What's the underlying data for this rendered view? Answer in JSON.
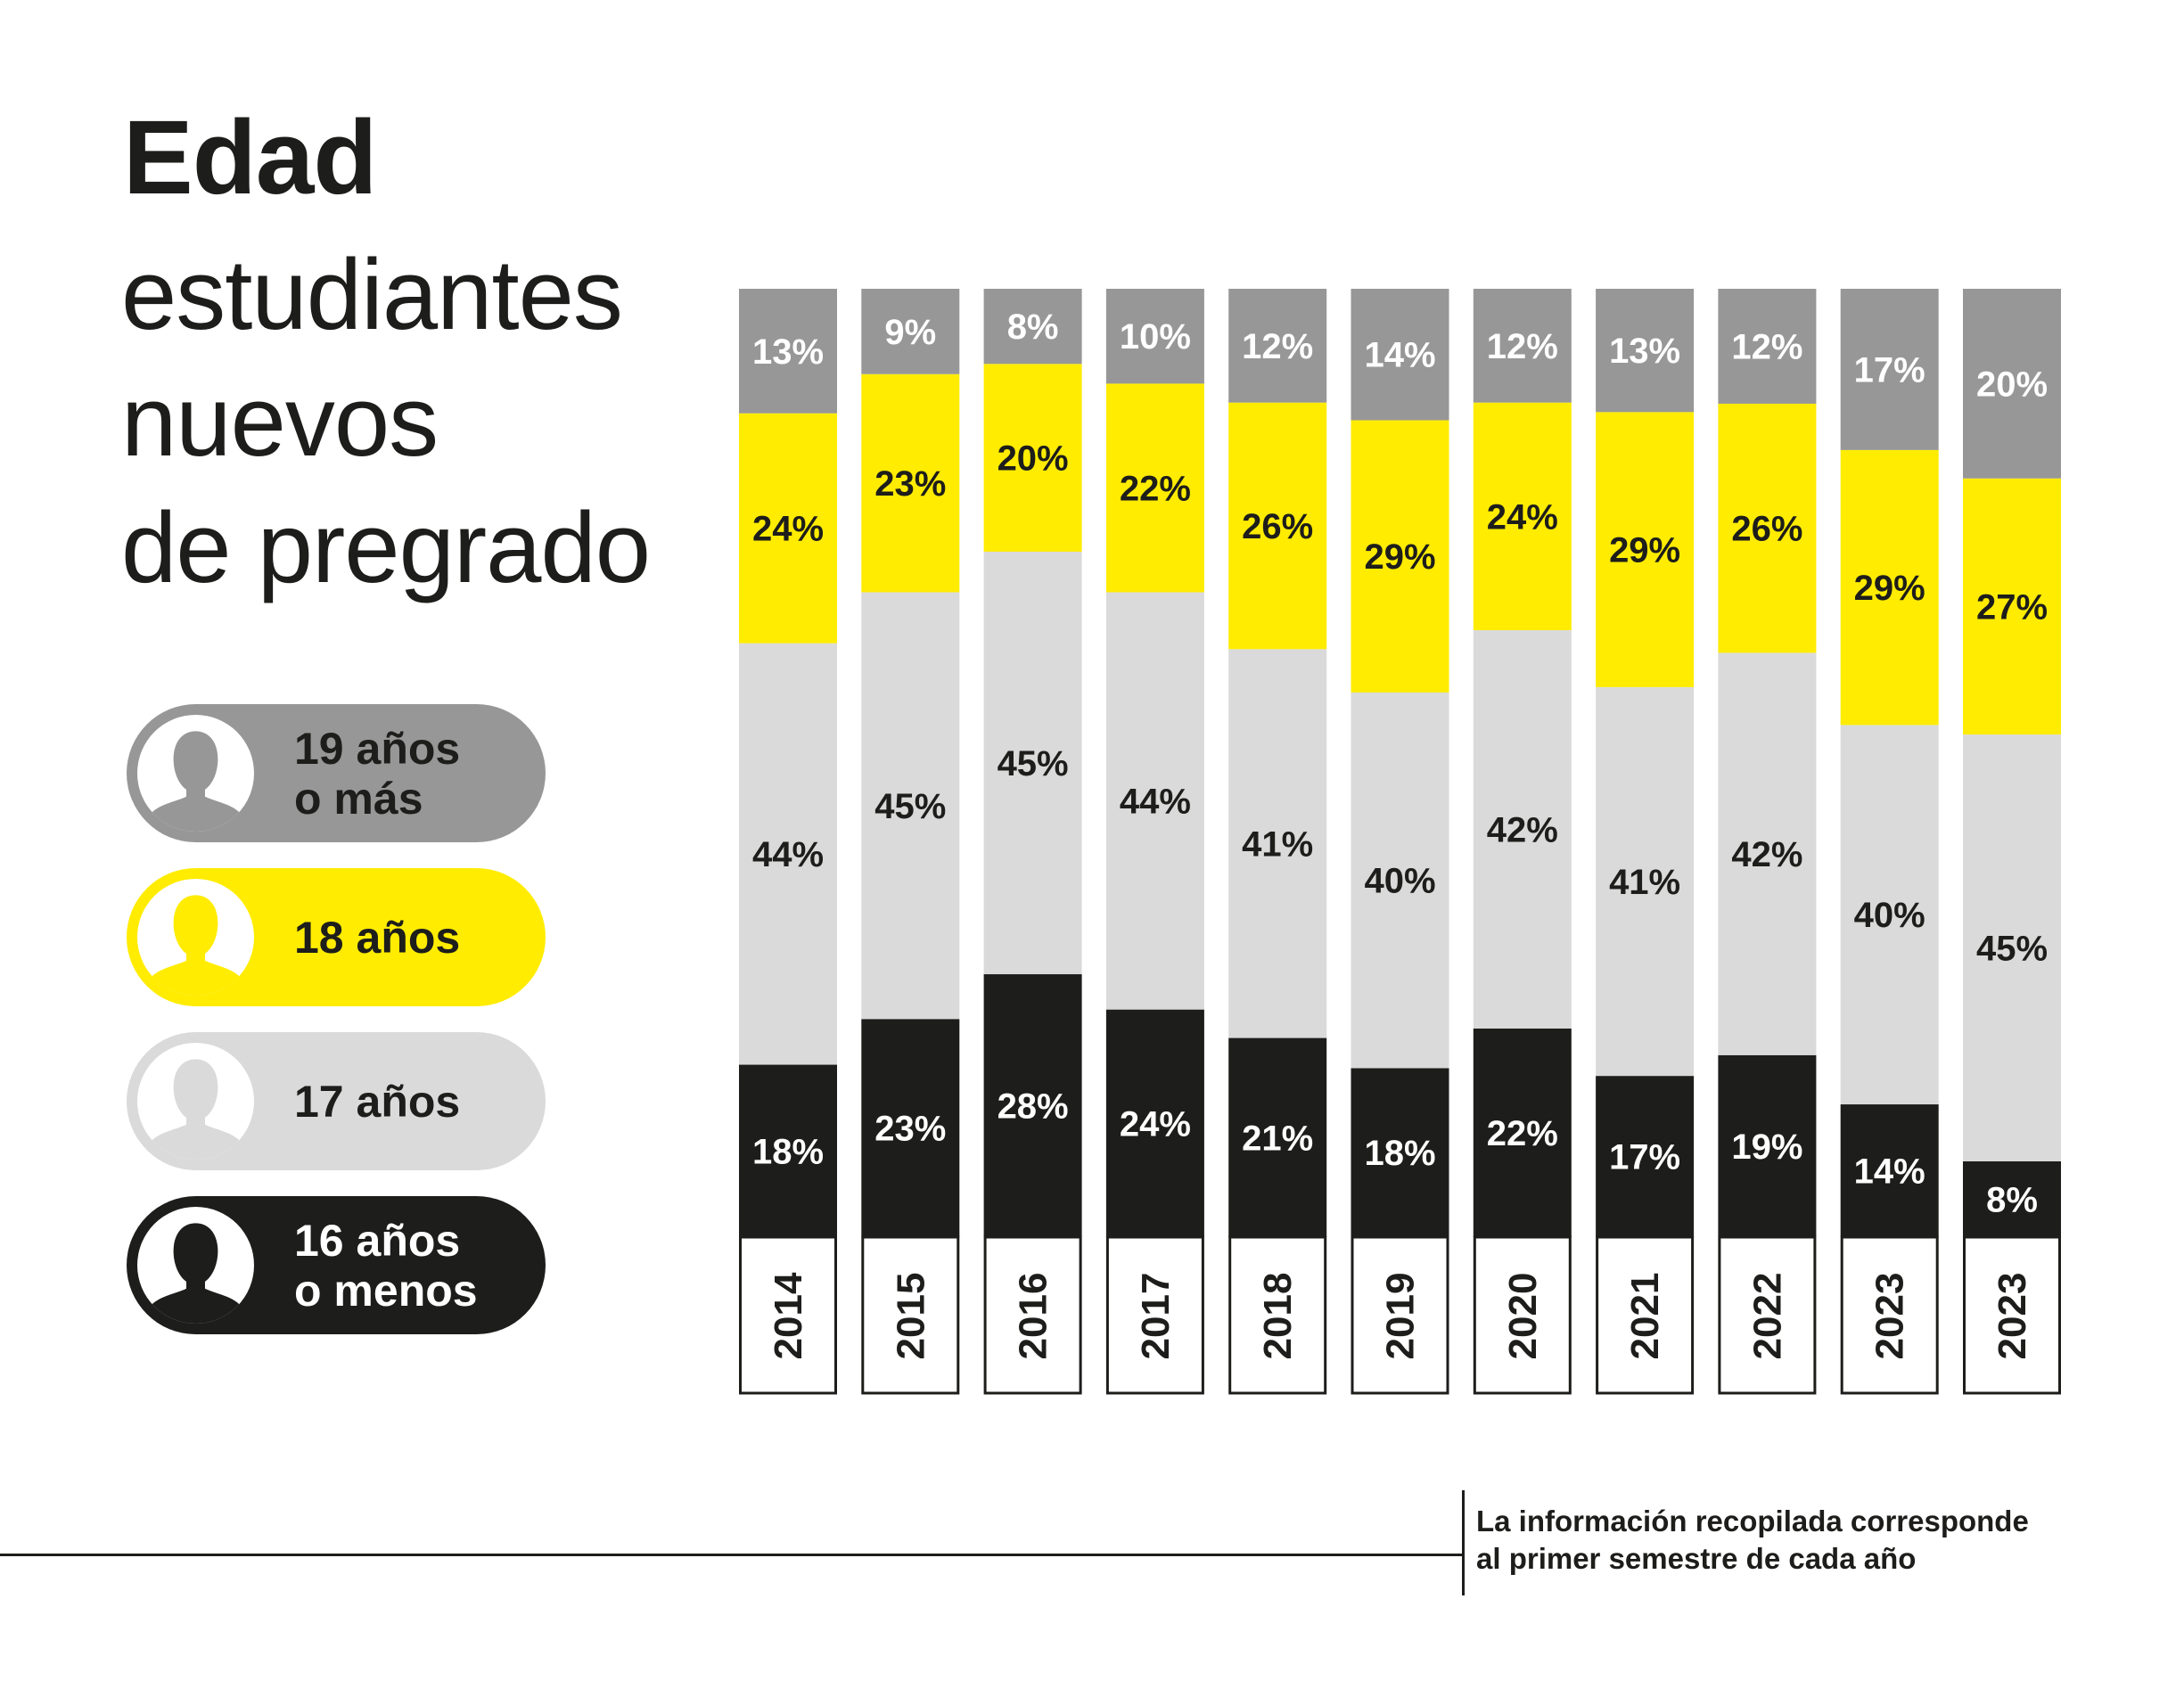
{
  "title": {
    "bold": "Edad",
    "lines": [
      "estudiantes",
      "nuevos",
      "de pregrado"
    ]
  },
  "legend": [
    {
      "key": "s19",
      "lines": [
        "19 años",
        "o más"
      ],
      "color": "#979797",
      "text_color": "#1d1d1b",
      "icon": "person-icon"
    },
    {
      "key": "s18",
      "lines": [
        "18 años"
      ],
      "color": "#ffec00",
      "text_color": "#1d1d1b",
      "icon": "person-icon"
    },
    {
      "key": "s17",
      "lines": [
        "17 años"
      ],
      "color": "#dadada",
      "text_color": "#1d1d1b",
      "icon": "person-icon"
    },
    {
      "key": "s16",
      "lines": [
        "16 años",
        "o menos"
      ],
      "color": "#1d1d1b",
      "text_color": "#ffffff",
      "icon": "person-icon"
    }
  ],
  "footer": {
    "note_lines": [
      "La información recopilada corresponde",
      "al primer semestre de cada año"
    ]
  },
  "chart_data": {
    "type": "bar",
    "stacked": true,
    "title": "Edad estudiantes nuevos de pregrado",
    "xlabel": "",
    "ylabel": "",
    "unit": "%",
    "categories": [
      "2014",
      "2015",
      "2016",
      "2017",
      "2018",
      "2019",
      "2020",
      "2021",
      "2022",
      "2023",
      "2023"
    ],
    "series": [
      {
        "name": "16 años o menos",
        "color": "#1d1d1b",
        "label_color": "#ffffff",
        "values": [
          18,
          23,
          28,
          24,
          21,
          18,
          22,
          17,
          19,
          14,
          8
        ]
      },
      {
        "name": "17 años",
        "color": "#dadada",
        "label_color": "#1d1d1b",
        "values": [
          44,
          45,
          45,
          44,
          41,
          40,
          42,
          41,
          42,
          40,
          45
        ]
      },
      {
        "name": "18 años",
        "color": "#ffec00",
        "label_color": "#1d1d1b",
        "values": [
          24,
          23,
          20,
          22,
          26,
          29,
          24,
          29,
          26,
          29,
          27
        ]
      },
      {
        "name": "19 años o más",
        "color": "#979797",
        "label_color": "#ffffff",
        "values": [
          13,
          9,
          8,
          10,
          12,
          14,
          12,
          13,
          12,
          17,
          20
        ]
      }
    ],
    "legend_position": "left",
    "grid": false
  }
}
